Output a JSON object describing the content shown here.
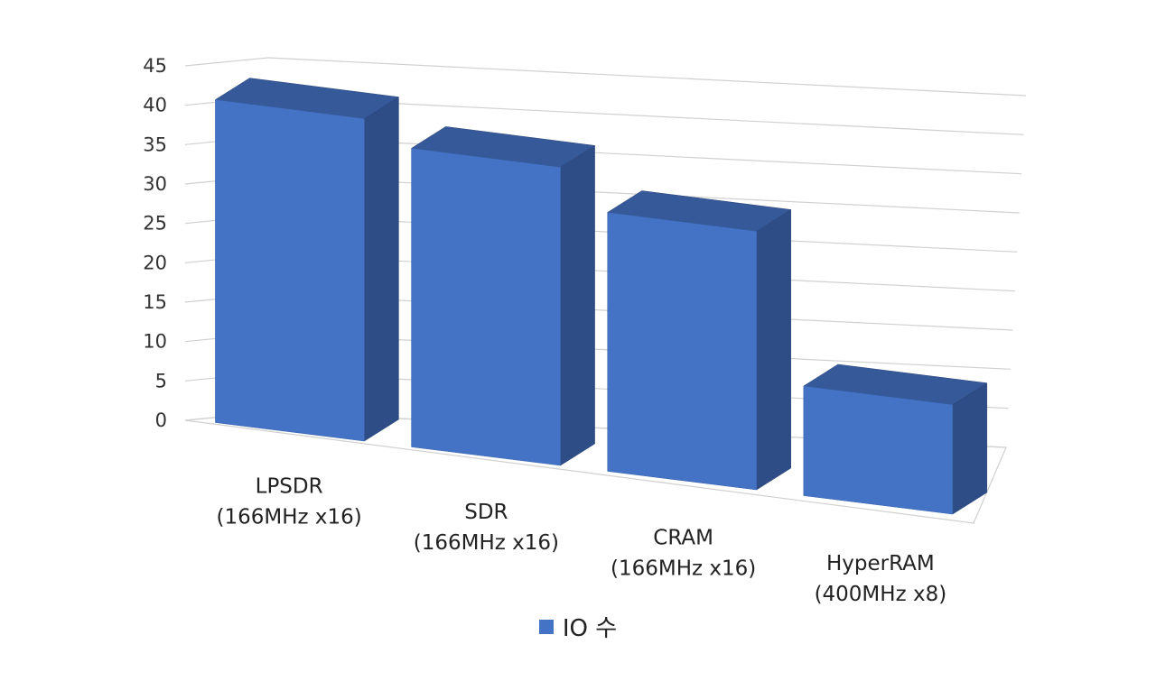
{
  "chart_data": {
    "type": "bar",
    "style": "3d-column",
    "categories": [
      [
        "LPSDR",
        "(166MHz x16)"
      ],
      [
        "SDR",
        "(166MHz x16)"
      ],
      [
        "CRAM",
        "(166MHz x16)"
      ],
      [
        "HyperRAM",
        "(400MHz x8)"
      ]
    ],
    "series": [
      {
        "name": "IO 수",
        "values": [
          41,
          38,
          33,
          14
        ],
        "color": "#4472C4"
      }
    ],
    "ylim": [
      0,
      45
    ],
    "yticks": [
      0,
      5,
      10,
      15,
      20,
      25,
      30,
      35,
      40,
      45
    ],
    "grid": true,
    "legend": "bottom"
  }
}
